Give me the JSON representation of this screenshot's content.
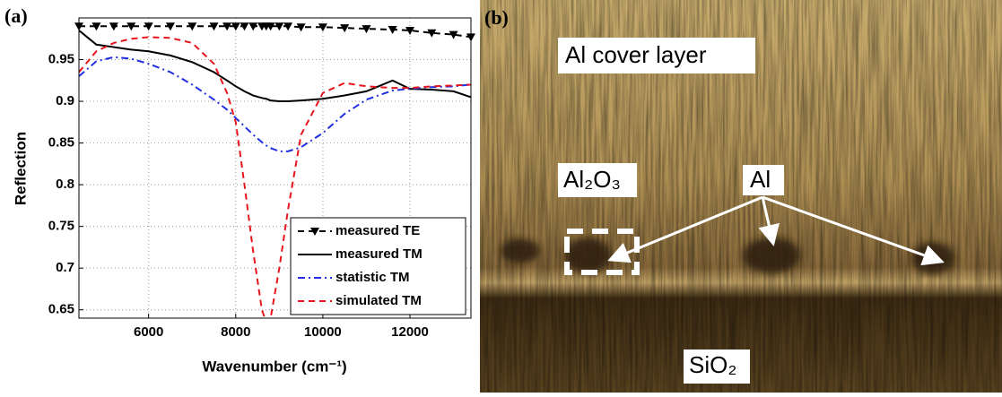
{
  "chart_data": {
    "type": "line",
    "panel_label": "(a)",
    "xlabel": "Wavenumber (cm⁻¹)",
    "ylabel": "Reflection",
    "x": [
      4400,
      4800,
      5200,
      5600,
      6000,
      6500,
      7000,
      7500,
      7800,
      8000,
      8200,
      8400,
      8600,
      8700,
      8800,
      9000,
      9200,
      9500,
      10000,
      10500,
      11000,
      11600,
      12000,
      12500,
      13000,
      13400
    ],
    "series": [
      {
        "name": "measured TE",
        "color": "#000000",
        "style": "dashed",
        "marker": "triangle-down",
        "values": [
          0.99,
          0.99,
          0.99,
          0.99,
          0.99,
          0.99,
          0.99,
          0.99,
          0.99,
          0.99,
          0.99,
          0.99,
          0.99,
          0.99,
          0.99,
          0.99,
          0.99,
          0.989,
          0.989,
          0.988,
          0.987,
          0.986,
          0.985,
          0.982,
          0.98,
          0.977
        ]
      },
      {
        "name": "measured TM",
        "color": "#000000",
        "style": "solid",
        "values": [
          0.985,
          0.968,
          0.965,
          0.962,
          0.96,
          0.955,
          0.947,
          0.935,
          0.925,
          0.918,
          0.912,
          0.907,
          0.904,
          0.903,
          0.901,
          0.9,
          0.9,
          0.901,
          0.903,
          0.907,
          0.912,
          0.925,
          0.915,
          0.914,
          0.912,
          0.905
        ]
      },
      {
        "name": "statistic TM",
        "color": "#1f2fe0",
        "style": "dashdot",
        "values": [
          0.93,
          0.948,
          0.953,
          0.951,
          0.945,
          0.935,
          0.92,
          0.902,
          0.89,
          0.88,
          0.87,
          0.86,
          0.851,
          0.847,
          0.844,
          0.84,
          0.84,
          0.845,
          0.862,
          0.885,
          0.902,
          0.913,
          0.915,
          0.917,
          0.918,
          0.92
        ]
      },
      {
        "name": "simulated TM",
        "color": "#e8141c",
        "style": "dashed",
        "values": [
          0.935,
          0.96,
          0.97,
          0.975,
          0.977,
          0.976,
          0.97,
          0.945,
          0.91,
          0.875,
          0.8,
          0.72,
          0.65,
          0.635,
          0.64,
          0.7,
          0.77,
          0.86,
          0.91,
          0.922,
          0.918,
          0.916,
          0.916,
          0.918,
          0.919,
          0.92
        ]
      }
    ],
    "xlim": [
      4400,
      13400
    ],
    "xticks": [
      6000,
      8000,
      10000,
      12000
    ],
    "ylim": [
      0.64,
      1.0
    ],
    "yticks": [
      0.65,
      0.7,
      0.75,
      0.8,
      0.85,
      0.9,
      0.95
    ],
    "grid": true,
    "legend": "lower right"
  },
  "image_panel": {
    "label": "(b)",
    "annotations": [
      "Al cover layer",
      "Al₂O₃",
      "Al",
      "SiO₂"
    ]
  }
}
